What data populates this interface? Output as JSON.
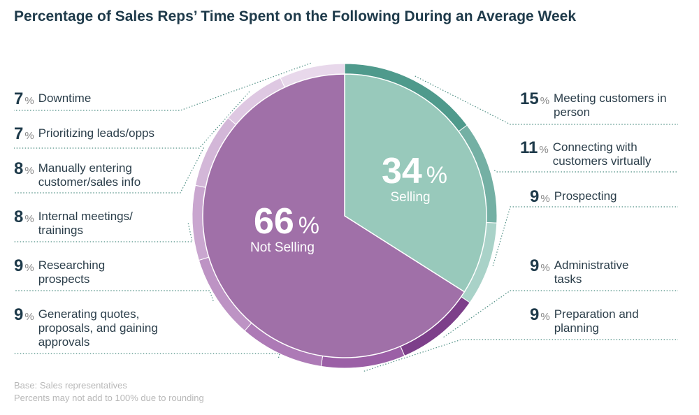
{
  "chart_data": {
    "type": "pie",
    "title": "Percentage of Sales Reps’ Time Spent on the Following During an Average Week",
    "inner": [
      {
        "label": "Selling",
        "value": 34,
        "color": "#98c9bb"
      },
      {
        "label": "Not Selling",
        "value": 66,
        "color": "#a070a8"
      }
    ],
    "outer": [
      {
        "label": "Meeting customers in person",
        "value": 15,
        "color": "#4f9a8c"
      },
      {
        "label": "Connecting with customers virtually",
        "value": 11,
        "color": "#74b0a4"
      },
      {
        "label": "Prospecting",
        "value": 9,
        "color": "#a9d2c8"
      },
      {
        "label": "Administrative tasks",
        "value": 9,
        "color": "#7d3f8a"
      },
      {
        "label": "Preparation and planning",
        "value": 9,
        "color": "#9b5fa6"
      },
      {
        "label": "Generating quotes, proposals, and gaining approvals",
        "value": 9,
        "color": "#ad7ab6"
      },
      {
        "label": "Researching prospects",
        "value": 9,
        "color": "#bd93c4"
      },
      {
        "label": "Internal meetings/ trainings",
        "value": 8,
        "color": "#c9a6cf"
      },
      {
        "label": "Manually entering customer/sales info",
        "value": 8,
        "color": "#d3b7d8"
      },
      {
        "label": "Prioritizing leads/opps",
        "value": 7,
        "color": "#dec8e2"
      },
      {
        "label": "Downtime",
        "value": 7,
        "color": "#e8d8eb"
      }
    ],
    "center_labels": [
      {
        "value": "34",
        "symbol": "%",
        "text": "Selling"
      },
      {
        "value": "66",
        "symbol": "%",
        "text": "Not Selling"
      }
    ],
    "percent_symbol": "%"
  },
  "footnotes": {
    "base": "Base: Sales representatives",
    "rounding": "Percents may not add to 100% due to rounding"
  }
}
